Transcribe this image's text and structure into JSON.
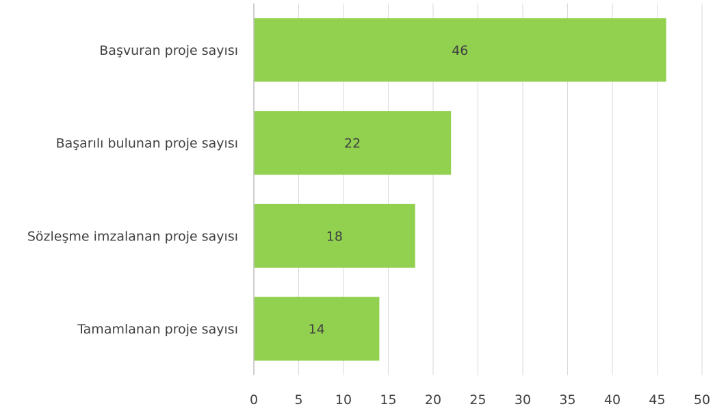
{
  "chart_data": {
    "type": "bar",
    "orientation": "horizontal",
    "title": "",
    "xlabel": "",
    "ylabel": "",
    "categories": [
      "Başvuran proje sayısı",
      "Başarılı bulunan proje sayısı",
      "Sözleşme imzalanan proje sayısı",
      "Tamamlanan proje sayısı"
    ],
    "values": [
      46,
      22,
      18,
      14
    ],
    "data_labels": [
      "46",
      "22",
      "18",
      "14"
    ],
    "xlim": [
      0,
      50
    ],
    "xticks": [
      0,
      5,
      10,
      15,
      20,
      25,
      30,
      35,
      40,
      45,
      50
    ],
    "xtick_labels": [
      "0",
      "5",
      "10",
      "15",
      "20",
      "25",
      "30",
      "35",
      "40",
      "45",
      "50"
    ],
    "grid": "vertical",
    "legend": "none",
    "colors": {
      "bar": "#92d050",
      "grid": "#d9d9d9",
      "axis": "#bfbfbf",
      "text": "#404040"
    }
  }
}
